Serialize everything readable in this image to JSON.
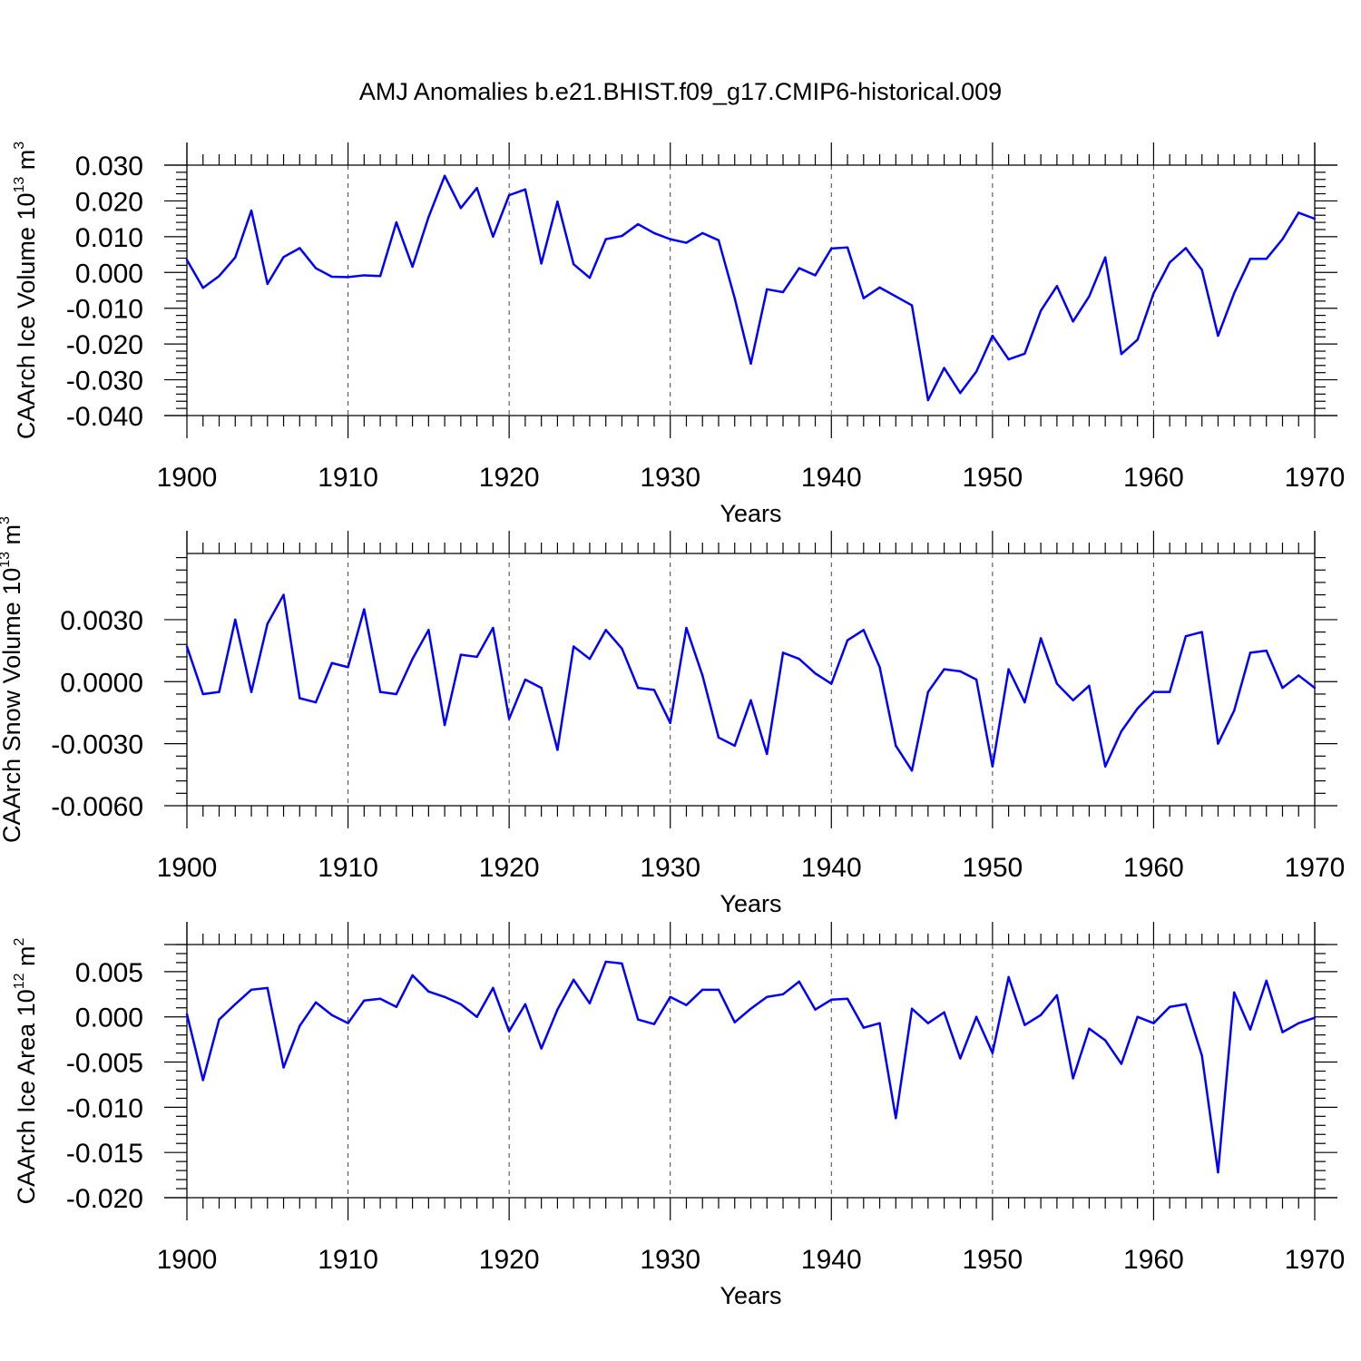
{
  "title": "AMJ Anomalies b.e21.BHIST.f09_g17.CMIP6-historical.009",
  "chart_data": [
    {
      "type": "line",
      "ylabel": "CAArch Ice Volume 10",
      "ylabel_exp": "13",
      "ylabel_unit": " m",
      "ylabel_unit_exp": "3",
      "xlabel": "Years",
      "xlim": [
        1900,
        1970
      ],
      "ylim": [
        -0.04,
        0.03
      ],
      "xticks": [
        1900,
        1910,
        1920,
        1930,
        1940,
        1950,
        1960,
        1970
      ],
      "yticks": [
        -0.04,
        -0.03,
        -0.02,
        -0.01,
        0.0,
        0.01,
        0.02,
        0.03
      ],
      "ytick_labels": [
        "-0.040",
        "-0.030",
        "-0.020",
        "-0.010",
        "0.000",
        "0.010",
        "0.020",
        "0.030"
      ],
      "ytop_line": 0.03,
      "grid": "vertical dashed at decades",
      "line_color": "#0000ff",
      "x_start": 1900,
      "values": [
        0.0035,
        -0.0043,
        -0.001,
        0.0042,
        0.0173,
        -0.0032,
        0.0043,
        0.0068,
        0.0012,
        -0.0012,
        -0.0013,
        -0.0008,
        -0.001,
        0.014,
        0.0016,
        0.0155,
        0.027,
        0.018,
        0.0236,
        0.01,
        0.0216,
        0.0232,
        0.0025,
        0.0198,
        0.0023,
        -0.0015,
        0.0093,
        0.0102,
        0.0135,
        0.011,
        0.0093,
        0.0083,
        0.011,
        0.009,
        -0.0072,
        -0.0255,
        -0.0047,
        -0.0055,
        0.0012,
        -0.0008,
        0.0067,
        0.007,
        -0.0072,
        -0.0042,
        -0.0067,
        -0.0092,
        -0.0357,
        -0.0267,
        -0.0337,
        -0.0277,
        -0.0177,
        -0.0243,
        -0.0227,
        -0.0107,
        -0.0038,
        -0.0137,
        -0.0067,
        0.0042,
        -0.0228,
        -0.0188,
        -0.0058,
        0.0028,
        0.0068,
        0.0007,
        -0.0177,
        -0.0058,
        0.0038,
        0.0038,
        0.0093,
        0.0167,
        0.015
      ]
    },
    {
      "type": "line",
      "ylabel": "CAArch Snow Volume 10",
      "ylabel_exp": "13",
      "ylabel_unit": " m",
      "ylabel_unit_exp": "3",
      "xlabel": "Years",
      "xlim": [
        1900,
        1970
      ],
      "ylim": [
        -0.006,
        0.0062
      ],
      "xticks": [
        1900,
        1910,
        1920,
        1930,
        1940,
        1950,
        1960,
        1970
      ],
      "yticks": [
        -0.006,
        -0.003,
        0.0,
        0.003
      ],
      "ytick_labels": [
        "-0.0060",
        "-0.0030",
        "0.0000",
        "0.0030"
      ],
      "ytop_line": 0.0062,
      "grid": "vertical dashed at decades",
      "line_color": "#0000ff",
      "x_start": 1900,
      "values": [
        0.0017,
        -0.0006,
        -0.0005,
        0.003,
        -0.0005,
        0.0028,
        0.0042,
        -0.0008,
        -0.001,
        0.0009,
        0.0007,
        0.0035,
        -0.0005,
        -0.0006,
        0.0011,
        0.0025,
        -0.0021,
        0.0013,
        0.0012,
        0.0026,
        -0.0018,
        0.0001,
        -0.0003,
        -0.0033,
        0.0017,
        0.0011,
        0.0025,
        0.0016,
        -0.0003,
        -0.0004,
        -0.002,
        0.0026,
        0.0003,
        -0.0027,
        -0.0031,
        -0.0009,
        -0.0035,
        0.0014,
        0.0011,
        0.0004,
        -0.0001,
        0.002,
        0.0025,
        0.0007,
        -0.0031,
        -0.0043,
        -0.0005,
        0.0006,
        0.0005,
        0.0001,
        -0.0041,
        0.0006,
        -0.001,
        0.0021,
        -0.0001,
        -0.0009,
        -0.0002,
        -0.0041,
        -0.0024,
        -0.0013,
        -0.0005,
        -0.0005,
        0.0022,
        0.0024,
        -0.003,
        -0.0014,
        0.0014,
        0.0015,
        -0.0003,
        0.0003,
        -0.0003
      ]
    },
    {
      "type": "line",
      "ylabel": "CAArch Ice Area 10",
      "ylabel_exp": "12",
      "ylabel_unit": " m",
      "ylabel_unit_exp": "2",
      "xlabel": "Years",
      "xlim": [
        1900,
        1970
      ],
      "ylim": [
        -0.02,
        0.008
      ],
      "xticks": [
        1900,
        1910,
        1920,
        1930,
        1940,
        1950,
        1960,
        1970
      ],
      "yticks": [
        -0.02,
        -0.015,
        -0.01,
        -0.005,
        0.0,
        0.005
      ],
      "ytick_labels": [
        "-0.020",
        "-0.015",
        "-0.010",
        "-0.005",
        "0.000",
        "0.005"
      ],
      "ytop_line": 0.008,
      "grid": "vertical dashed at decades",
      "line_color": "#0000ff",
      "x_start": 1900,
      "values": [
        0.0003,
        -0.007,
        -0.0003,
        0.0014,
        0.003,
        0.0032,
        -0.0056,
        -0.001,
        0.0016,
        0.0002,
        -0.0007,
        0.0018,
        0.002,
        0.0011,
        0.0046,
        0.0028,
        0.0022,
        0.0014,
        0.0,
        0.0032,
        -0.0016,
        0.0014,
        -0.0035,
        0.0008,
        0.0041,
        0.0015,
        0.0061,
        0.0059,
        -0.0003,
        -0.0008,
        0.0022,
        0.0013,
        0.003,
        0.003,
        -0.0006,
        0.0009,
        0.0022,
        0.0025,
        0.0039,
        0.0008,
        0.0019,
        0.002,
        -0.0012,
        -0.0007,
        -0.0112,
        0.0009,
        -0.0007,
        0.0005,
        -0.0046,
        0.0,
        -0.004,
        0.0044,
        -0.0009,
        0.0002,
        0.0024,
        -0.0068,
        -0.0013,
        -0.0026,
        -0.0052,
        0.0,
        -0.0007,
        0.0011,
        0.0014,
        -0.0043,
        -0.0172,
        0.0027,
        -0.0014,
        0.004,
        -0.0017,
        -0.0007,
        -0.0001
      ]
    }
  ]
}
